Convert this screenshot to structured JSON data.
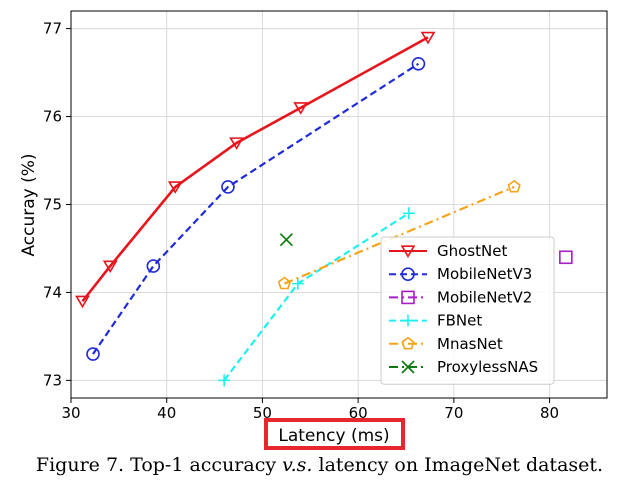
{
  "chart_data": {
    "type": "line",
    "title": "",
    "xlabel": "Latency (ms)",
    "ylabel": "Accuray (%)",
    "xlim": [
      30,
      86
    ],
    "ylim": [
      72.8,
      77.2
    ],
    "xticks": [
      30,
      40,
      50,
      60,
      70,
      80
    ],
    "yticks": [
      73,
      74,
      75,
      76,
      77
    ],
    "grid": true,
    "legend_position": "lower-right",
    "highlight": "xlabel",
    "series": [
      {
        "name": "GhostNet",
        "color": "#e8141b",
        "line": "solid",
        "marker": "triangle-down",
        "x": [
          31.2,
          34.1,
          40.9,
          47.3,
          54.0,
          67.3
        ],
        "y": [
          73.9,
          74.3,
          75.2,
          75.7,
          76.1,
          76.9
        ]
      },
      {
        "name": "MobileNetV3",
        "color": "#1f2bd6",
        "line": "dashed",
        "marker": "circle",
        "x": [
          32.3,
          38.6,
          46.4,
          66.3
        ],
        "y": [
          73.3,
          74.3,
          75.2,
          76.6
        ]
      },
      {
        "name": "MobileNetV2",
        "color": "#a61fc7",
        "line": "dashdot",
        "marker": "square",
        "x": [
          81.7
        ],
        "y": [
          74.4
        ]
      },
      {
        "name": "FBNet",
        "color": "#1ff0f0",
        "line": "dashed",
        "marker": "plus",
        "x": [
          46.0,
          53.7,
          65.3
        ],
        "y": [
          73.0,
          74.1,
          74.9
        ]
      },
      {
        "name": "MnasNet",
        "color": "#f5a417",
        "line": "dashdot",
        "marker": "pentagon",
        "x": [
          52.3,
          76.3
        ],
        "y": [
          74.1,
          75.2
        ]
      },
      {
        "name": "ProxylessNAS",
        "color": "#0c7a0c",
        "line": "dashdot",
        "marker": "x",
        "x": [
          52.5
        ],
        "y": [
          74.6
        ]
      }
    ]
  },
  "caption": {
    "prefix": "Figure 7. Top-1 accuracy ",
    "emphasis": "v.s.",
    "suffix": " latency on ImageNet dataset."
  },
  "colors": {
    "highlight_box": "#e8262e",
    "axis": "#000000",
    "grid": "#d9d9d9"
  }
}
